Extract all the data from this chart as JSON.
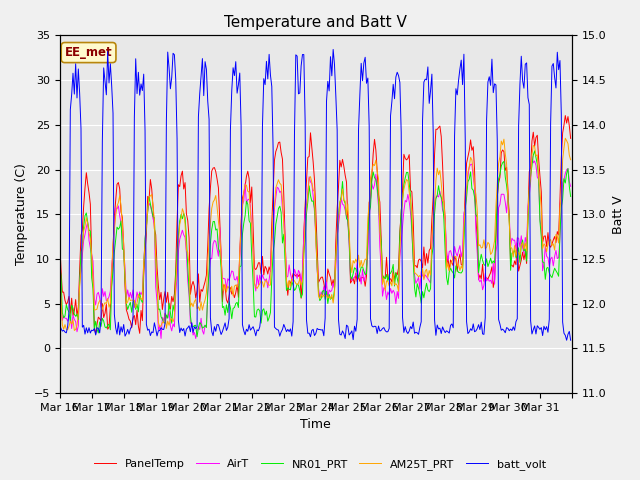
{
  "title": "Temperature and Batt V",
  "xlabel": "Time",
  "ylabel_left": "Temperature (C)",
  "ylabel_right": "Batt V",
  "ylim_left": [
    -5,
    35
  ],
  "ylim_right": [
    11.0,
    15.0
  ],
  "xtick_labels": [
    "Mar 16",
    "Mar 17",
    "Mar 18",
    "Mar 19",
    "Mar 20",
    "Mar 21",
    "Mar 22",
    "Mar 23",
    "Mar 24",
    "Mar 25",
    "Mar 26",
    "Mar 27",
    "Mar 28",
    "Mar 29",
    "Mar 30",
    "Mar 31"
  ],
  "annotation_text": "EE_met",
  "annotation_color": "#8B0000",
  "annotation_bg": "#FFFACD",
  "annotation_border": "#B8860B",
  "colors": {
    "PanelTemp": "#FF0000",
    "AirT": "#FF00FF",
    "NR01_PRT": "#00EE00",
    "AM25T_PRT": "#FFA500",
    "batt_volt": "#0000FF"
  },
  "legend_labels": [
    "PanelTemp",
    "AirT",
    "NR01_PRT",
    "AM25T_PRT",
    "batt_volt"
  ],
  "fig_bg": "#F0F0F0",
  "plot_bg": "#E8E8E8",
  "title_fontsize": 11,
  "axis_fontsize": 9,
  "tick_fontsize": 8,
  "legend_fontsize": 8
}
